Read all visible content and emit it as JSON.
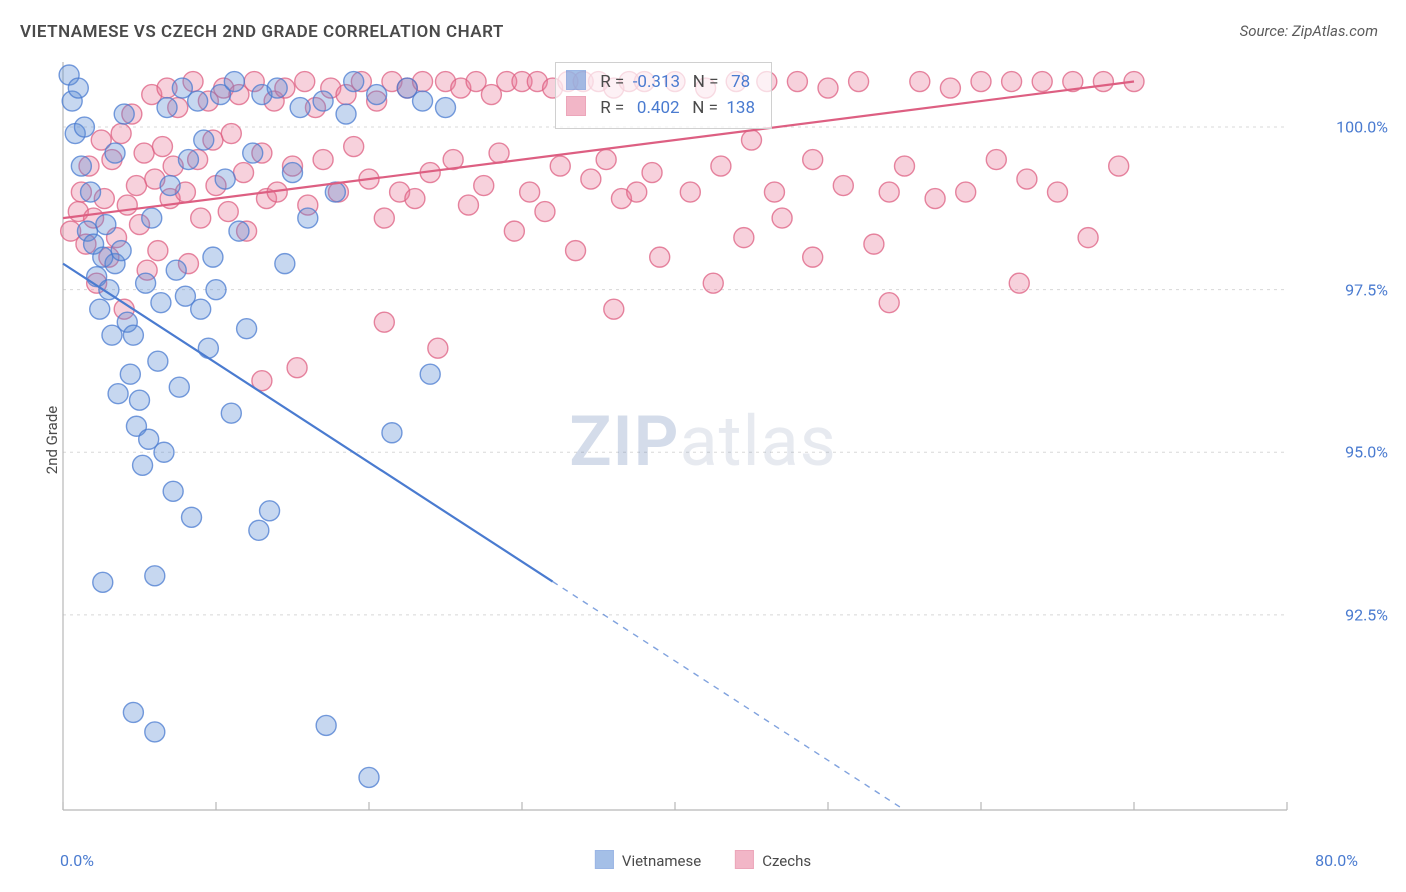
{
  "title": "VIETNAMESE VS CZECH 2ND GRADE CORRELATION CHART",
  "source_label": "Source: ZipAtlas.com",
  "ylabel": "2nd Grade",
  "watermark_zip": "ZIP",
  "watermark_atlas": "atlas",
  "chart": {
    "type": "scatter",
    "background_color": "#ffffff",
    "grid_color": "#d8d8d8",
    "axis_color": "#b8b8b8",
    "tick_label_color": "#4a7bd0",
    "xlim": [
      0,
      80
    ],
    "ylim": [
      89.5,
      101.0
    ],
    "x_ticks": [
      0,
      10,
      20,
      30,
      40,
      50,
      60,
      70,
      80
    ],
    "x_tick_labels": {
      "0": "0.0%",
      "80": "80.0%"
    },
    "y_ticks": [
      92.5,
      95.0,
      97.5,
      100.0
    ],
    "y_tick_labels": [
      "92.5%",
      "95.0%",
      "97.5%",
      "100.0%"
    ],
    "marker_radius": 10,
    "marker_fill_opacity": 0.35,
    "trend_line_width": 2.2,
    "trend_dash_threshold_x": 32,
    "series": [
      {
        "name": "Vietnamese",
        "color": "#5b8bd4",
        "border_color": "#4a7bd0",
        "R": "-0.313",
        "N": "78",
        "trend": {
          "x1": 0,
          "y1": 97.9,
          "x2": 55,
          "y2": 89.5
        },
        "points": [
          [
            0.4,
            100.8
          ],
          [
            0.6,
            100.4
          ],
          [
            0.8,
            99.9
          ],
          [
            1.0,
            100.6
          ],
          [
            1.2,
            99.4
          ],
          [
            1.4,
            100.0
          ],
          [
            1.6,
            98.4
          ],
          [
            1.8,
            99.0
          ],
          [
            2.0,
            98.2
          ],
          [
            2.2,
            97.7
          ],
          [
            2.4,
            97.2
          ],
          [
            2.6,
            98.0
          ],
          [
            2.8,
            98.5
          ],
          [
            3.0,
            97.5
          ],
          [
            3.2,
            96.8
          ],
          [
            3.4,
            97.9
          ],
          [
            3.6,
            95.9
          ],
          [
            3.8,
            98.1
          ],
          [
            4.0,
            100.2
          ],
          [
            4.2,
            97.0
          ],
          [
            4.4,
            96.2
          ],
          [
            4.6,
            96.8
          ],
          [
            4.8,
            95.4
          ],
          [
            5.0,
            95.8
          ],
          [
            5.2,
            94.8
          ],
          [
            5.4,
            97.6
          ],
          [
            5.6,
            95.2
          ],
          [
            5.8,
            98.6
          ],
          [
            6.0,
            93.1
          ],
          [
            6.2,
            96.4
          ],
          [
            6.4,
            97.3
          ],
          [
            6.6,
            95.0
          ],
          [
            6.8,
            100.3
          ],
          [
            7.0,
            99.1
          ],
          [
            7.2,
            94.4
          ],
          [
            7.4,
            97.8
          ],
          [
            7.6,
            96.0
          ],
          [
            7.8,
            100.6
          ],
          [
            8.0,
            97.4
          ],
          [
            8.2,
            99.5
          ],
          [
            8.4,
            94.0
          ],
          [
            8.8,
            100.4
          ],
          [
            9.0,
            97.2
          ],
          [
            9.2,
            99.8
          ],
          [
            9.5,
            96.6
          ],
          [
            9.8,
            98.0
          ],
          [
            10.0,
            97.5
          ],
          [
            10.3,
            100.5
          ],
          [
            10.6,
            99.2
          ],
          [
            11.0,
            95.6
          ],
          [
            11.2,
            100.7
          ],
          [
            11.5,
            98.4
          ],
          [
            12.0,
            96.9
          ],
          [
            12.4,
            99.6
          ],
          [
            12.8,
            93.8
          ],
          [
            13.0,
            100.5
          ],
          [
            13.5,
            94.1
          ],
          [
            14.0,
            100.6
          ],
          [
            14.5,
            97.9
          ],
          [
            15.0,
            99.3
          ],
          [
            15.5,
            100.3
          ],
          [
            16.0,
            98.6
          ],
          [
            17.0,
            100.4
          ],
          [
            17.2,
            90.8
          ],
          [
            17.8,
            99.0
          ],
          [
            18.5,
            100.2
          ],
          [
            19.0,
            100.7
          ],
          [
            20.0,
            90.0
          ],
          [
            20.5,
            100.5
          ],
          [
            21.5,
            95.3
          ],
          [
            22.5,
            100.6
          ],
          [
            23.5,
            100.4
          ],
          [
            24.0,
            96.2
          ],
          [
            25.0,
            100.3
          ],
          [
            4.6,
            91.0
          ],
          [
            6.0,
            90.7
          ],
          [
            2.6,
            93.0
          ],
          [
            3.4,
            99.6
          ]
        ]
      },
      {
        "name": "Czechs",
        "color": "#e87c9a",
        "border_color": "#dd5f82",
        "R": "0.402",
        "N": "138",
        "trend": {
          "x1": 0,
          "y1": 98.6,
          "x2": 70,
          "y2": 100.7
        },
        "points": [
          [
            0.5,
            98.4
          ],
          [
            1.0,
            98.7
          ],
          [
            1.2,
            99.0
          ],
          [
            1.5,
            98.2
          ],
          [
            1.7,
            99.4
          ],
          [
            2.0,
            98.6
          ],
          [
            2.2,
            97.6
          ],
          [
            2.5,
            99.8
          ],
          [
            2.7,
            98.9
          ],
          [
            3.0,
            98.0
          ],
          [
            3.2,
            99.5
          ],
          [
            3.5,
            98.3
          ],
          [
            3.8,
            99.9
          ],
          [
            4.0,
            97.2
          ],
          [
            4.2,
            98.8
          ],
          [
            4.5,
            100.2
          ],
          [
            4.8,
            99.1
          ],
          [
            5.0,
            98.5
          ],
          [
            5.3,
            99.6
          ],
          [
            5.5,
            97.8
          ],
          [
            5.8,
            100.5
          ],
          [
            6.0,
            99.2
          ],
          [
            6.2,
            98.1
          ],
          [
            6.5,
            99.7
          ],
          [
            6.8,
            100.6
          ],
          [
            7.0,
            98.9
          ],
          [
            7.2,
            99.4
          ],
          [
            7.5,
            100.3
          ],
          [
            8.0,
            99.0
          ],
          [
            8.2,
            97.9
          ],
          [
            8.5,
            100.7
          ],
          [
            8.8,
            99.5
          ],
          [
            9.0,
            98.6
          ],
          [
            9.5,
            100.4
          ],
          [
            9.8,
            99.8
          ],
          [
            10.0,
            99.1
          ],
          [
            10.5,
            100.6
          ],
          [
            10.8,
            98.7
          ],
          [
            11.0,
            99.9
          ],
          [
            11.5,
            100.5
          ],
          [
            11.8,
            99.3
          ],
          [
            12.0,
            98.4
          ],
          [
            12.5,
            100.7
          ],
          [
            13.0,
            99.6
          ],
          [
            13.3,
            98.9
          ],
          [
            13.8,
            100.4
          ],
          [
            14.0,
            99.0
          ],
          [
            14.5,
            100.6
          ],
          [
            15.0,
            99.4
          ],
          [
            15.3,
            96.3
          ],
          [
            15.8,
            100.7
          ],
          [
            16.0,
            98.8
          ],
          [
            16.5,
            100.3
          ],
          [
            17.0,
            99.5
          ],
          [
            17.5,
            100.6
          ],
          [
            18.0,
            99.0
          ],
          [
            18.5,
            100.5
          ],
          [
            19.0,
            99.7
          ],
          [
            19.5,
            100.7
          ],
          [
            20.0,
            99.2
          ],
          [
            20.5,
            100.4
          ],
          [
            21.0,
            98.6
          ],
          [
            21.5,
            100.7
          ],
          [
            22.0,
            99.0
          ],
          [
            22.5,
            100.6
          ],
          [
            23.0,
            98.9
          ],
          [
            23.5,
            100.7
          ],
          [
            24.0,
            99.3
          ],
          [
            24.5,
            96.6
          ],
          [
            25.0,
            100.7
          ],
          [
            25.5,
            99.5
          ],
          [
            26.0,
            100.6
          ],
          [
            26.5,
            98.8
          ],
          [
            27.0,
            100.7
          ],
          [
            27.5,
            99.1
          ],
          [
            28.0,
            100.5
          ],
          [
            28.5,
            99.6
          ],
          [
            29.0,
            100.7
          ],
          [
            29.5,
            98.4
          ],
          [
            30.0,
            100.7
          ],
          [
            30.5,
            99.0
          ],
          [
            31.0,
            100.7
          ],
          [
            31.5,
            98.7
          ],
          [
            32.0,
            100.6
          ],
          [
            32.5,
            99.4
          ],
          [
            33.0,
            100.7
          ],
          [
            33.5,
            98.1
          ],
          [
            34.0,
            100.7
          ],
          [
            34.5,
            99.2
          ],
          [
            35.0,
            100.7
          ],
          [
            35.5,
            99.5
          ],
          [
            36.0,
            100.6
          ],
          [
            36.5,
            98.9
          ],
          [
            37.0,
            100.7
          ],
          [
            37.5,
            99.0
          ],
          [
            38.0,
            100.7
          ],
          [
            38.5,
            99.3
          ],
          [
            39.0,
            98.0
          ],
          [
            40.0,
            100.7
          ],
          [
            41.0,
            99.0
          ],
          [
            42.0,
            100.6
          ],
          [
            42.5,
            97.6
          ],
          [
            43.0,
            99.4
          ],
          [
            44.0,
            100.7
          ],
          [
            44.5,
            98.3
          ],
          [
            45.0,
            99.8
          ],
          [
            46.0,
            100.7
          ],
          [
            46.5,
            99.0
          ],
          [
            47.0,
            98.6
          ],
          [
            48.0,
            100.7
          ],
          [
            49.0,
            99.5
          ],
          [
            50.0,
            100.6
          ],
          [
            51.0,
            99.1
          ],
          [
            52.0,
            100.7
          ],
          [
            53.0,
            98.2
          ],
          [
            54.0,
            97.3
          ],
          [
            55.0,
            99.4
          ],
          [
            56.0,
            100.7
          ],
          [
            57.0,
            98.9
          ],
          [
            58.0,
            100.6
          ],
          [
            59.0,
            99.0
          ],
          [
            60.0,
            100.7
          ],
          [
            61.0,
            99.5
          ],
          [
            62.0,
            100.7
          ],
          [
            62.5,
            97.6
          ],
          [
            63.0,
            99.2
          ],
          [
            64.0,
            100.7
          ],
          [
            65.0,
            99.0
          ],
          [
            66.0,
            100.7
          ],
          [
            67.0,
            98.3
          ],
          [
            68.0,
            100.7
          ],
          [
            69.0,
            99.4
          ],
          [
            70.0,
            100.7
          ],
          [
            13.0,
            96.1
          ],
          [
            21.0,
            97.0
          ],
          [
            36.0,
            97.2
          ],
          [
            49.0,
            98.0
          ],
          [
            54.0,
            99.0
          ]
        ]
      }
    ]
  }
}
